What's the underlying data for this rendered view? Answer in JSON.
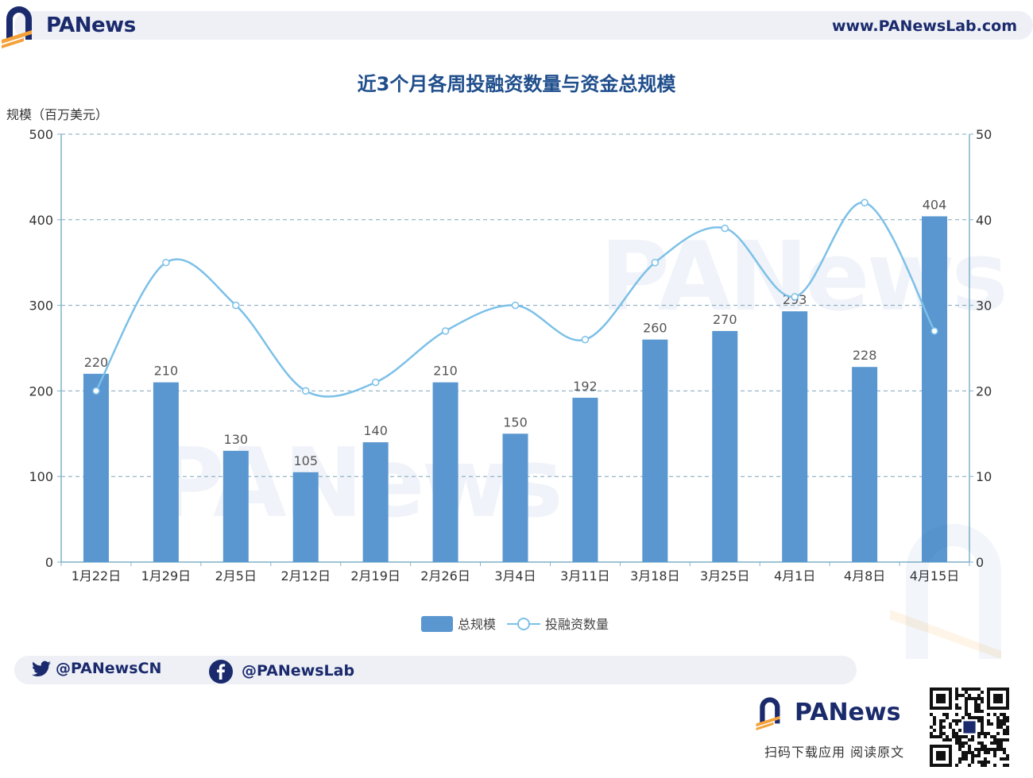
{
  "header": {
    "brand": "PANews",
    "url": "www.PANewsLab.com"
  },
  "watermark": "PANews",
  "chart_data": {
    "type": "bar",
    "title": "近3个月各周投融资数量与资金总规模",
    "ylabel": "规模（百万美元）",
    "ylim": [
      0,
      500
    ],
    "y2lim": [
      0,
      50
    ],
    "yticks": [
      0,
      100,
      200,
      300,
      400,
      500
    ],
    "y2ticks": [
      0,
      10,
      20,
      30,
      40,
      50
    ],
    "grid": true,
    "legend_position": "bottom",
    "categories": [
      "1月22日",
      "1月29日",
      "2月5日",
      "2月12日",
      "2月19日",
      "2月26日",
      "3月4日",
      "3月11日",
      "3月18日",
      "3月25日",
      "4月1日",
      "4月8日",
      "4月15日"
    ],
    "series": [
      {
        "name": "总规模",
        "type": "bar",
        "axis": "left",
        "color": "#5a97d0",
        "values": [
          220,
          210,
          130,
          105,
          140,
          210,
          150,
          192,
          260,
          270,
          293,
          228,
          404
        ],
        "labels": [
          "220",
          "210",
          "130",
          "105",
          "140",
          "210",
          "150",
          "192",
          "260",
          "270",
          "293",
          "228",
          "404"
        ]
      },
      {
        "name": "投融资数量",
        "type": "line",
        "axis": "right",
        "color": "#7cc0e8",
        "smooth": true,
        "values": [
          20,
          35,
          30,
          20,
          21,
          27,
          30,
          26,
          35,
          39,
          31,
          42,
          27
        ]
      }
    ]
  },
  "social": {
    "twitter": "@PANewsCN",
    "facebook": "@PANewsLab"
  },
  "footer": {
    "brand": "PANews",
    "tagline": "扫码下载应用  阅读原文"
  },
  "colors": {
    "brand_navy": "#1a2a6c",
    "accent_orange": "#f5a13a",
    "title_blue": "#1f4e8c"
  }
}
